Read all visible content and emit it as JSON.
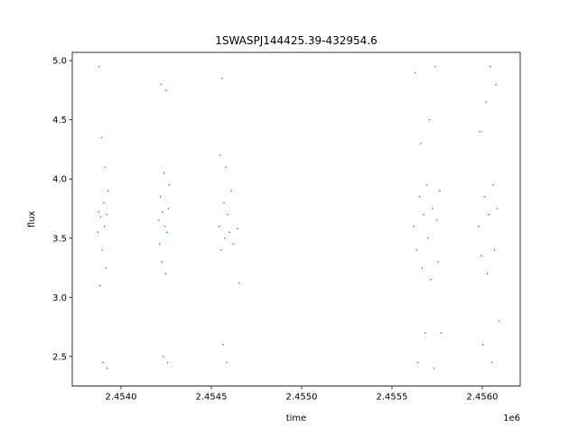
{
  "chart_data": {
    "type": "scatter",
    "title": "1SWASPJ144425.39-432954.6",
    "xlabel": "time",
    "ylabel": "flux",
    "x_offset_label": "1e6",
    "xlim": [
      2453730,
      2456210
    ],
    "ylim": [
      2.25,
      5.07
    ],
    "x_ticks": [
      2.454,
      2.4545,
      2.455,
      2.4555,
      2.456
    ],
    "x_tick_labels": [
      "2.4540",
      "2.4545",
      "2.4550",
      "2.4555",
      "2.4560"
    ],
    "y_ticks": [
      2.5,
      3.0,
      3.5,
      4.0,
      4.5,
      5.0
    ],
    "y_tick_labels": [
      "2.5",
      "3.0",
      "3.5",
      "4.0",
      "4.5",
      "5.0"
    ],
    "grid": false,
    "marker_color": "#1f77b4",
    "series": [
      {
        "points": [
          [
            2453872,
            3.55
          ],
          [
            2453876,
            3.72
          ],
          [
            2453880,
            4.95
          ],
          [
            2453884,
            3.1
          ],
          [
            2453888,
            3.68
          ],
          [
            2453892,
            4.35
          ],
          [
            2453896,
            3.4
          ],
          [
            2453900,
            2.45
          ],
          [
            2453904,
            3.8
          ],
          [
            2453908,
            3.6
          ],
          [
            2453912,
            4.1
          ],
          [
            2453916,
            3.25
          ],
          [
            2453920,
            3.7
          ],
          [
            2453924,
            2.4
          ],
          [
            2453928,
            3.9
          ],
          [
            2454210,
            3.65
          ],
          [
            2454214,
            3.45
          ],
          [
            2454218,
            3.85
          ],
          [
            2454222,
            4.8
          ],
          [
            2454226,
            3.3
          ],
          [
            2454230,
            3.72
          ],
          [
            2454234,
            2.5
          ],
          [
            2454238,
            4.05
          ],
          [
            2454242,
            3.6
          ],
          [
            2454246,
            3.2
          ],
          [
            2454250,
            4.75
          ],
          [
            2454254,
            3.55
          ],
          [
            2454258,
            2.45
          ],
          [
            2454262,
            3.75
          ],
          [
            2454266,
            3.95
          ],
          [
            2454545,
            3.6
          ],
          [
            2454550,
            4.2
          ],
          [
            2454555,
            3.4
          ],
          [
            2454560,
            4.85
          ],
          [
            2454565,
            2.6
          ],
          [
            2454570,
            3.8
          ],
          [
            2454575,
            3.5
          ],
          [
            2454580,
            4.1
          ],
          [
            2454585,
            2.45
          ],
          [
            2454590,
            3.7
          ],
          [
            2454600,
            3.55
          ],
          [
            2454610,
            3.9
          ],
          [
            2454620,
            3.45
          ],
          [
            2454645,
            3.58
          ],
          [
            2454655,
            3.12
          ],
          [
            2455620,
            3.6
          ],
          [
            2455628,
            4.9
          ],
          [
            2455636,
            3.4
          ],
          [
            2455644,
            2.45
          ],
          [
            2455652,
            3.85
          ],
          [
            2455660,
            4.3
          ],
          [
            2455668,
            3.25
          ],
          [
            2455676,
            3.7
          ],
          [
            2455684,
            2.7
          ],
          [
            2455692,
            3.95
          ],
          [
            2455700,
            3.5
          ],
          [
            2455708,
            4.5
          ],
          [
            2455716,
            3.15
          ],
          [
            2455724,
            3.75
          ],
          [
            2455732,
            2.4
          ],
          [
            2455740,
            4.95
          ],
          [
            2455748,
            3.65
          ],
          [
            2455756,
            3.3
          ],
          [
            2455764,
            3.9
          ],
          [
            2455772,
            2.7
          ],
          [
            2455980,
            3.6
          ],
          [
            2455988,
            4.4
          ],
          [
            2455996,
            3.35
          ],
          [
            2456004,
            2.6
          ],
          [
            2456012,
            3.85
          ],
          [
            2456020,
            4.65
          ],
          [
            2456028,
            3.2
          ],
          [
            2456036,
            3.7
          ],
          [
            2456044,
            4.95
          ],
          [
            2456052,
            2.45
          ],
          [
            2456060,
            3.95
          ],
          [
            2456068,
            3.4
          ],
          [
            2456076,
            4.8
          ],
          [
            2456084,
            3.75
          ],
          [
            2456092,
            2.8
          ]
        ]
      }
    ]
  }
}
